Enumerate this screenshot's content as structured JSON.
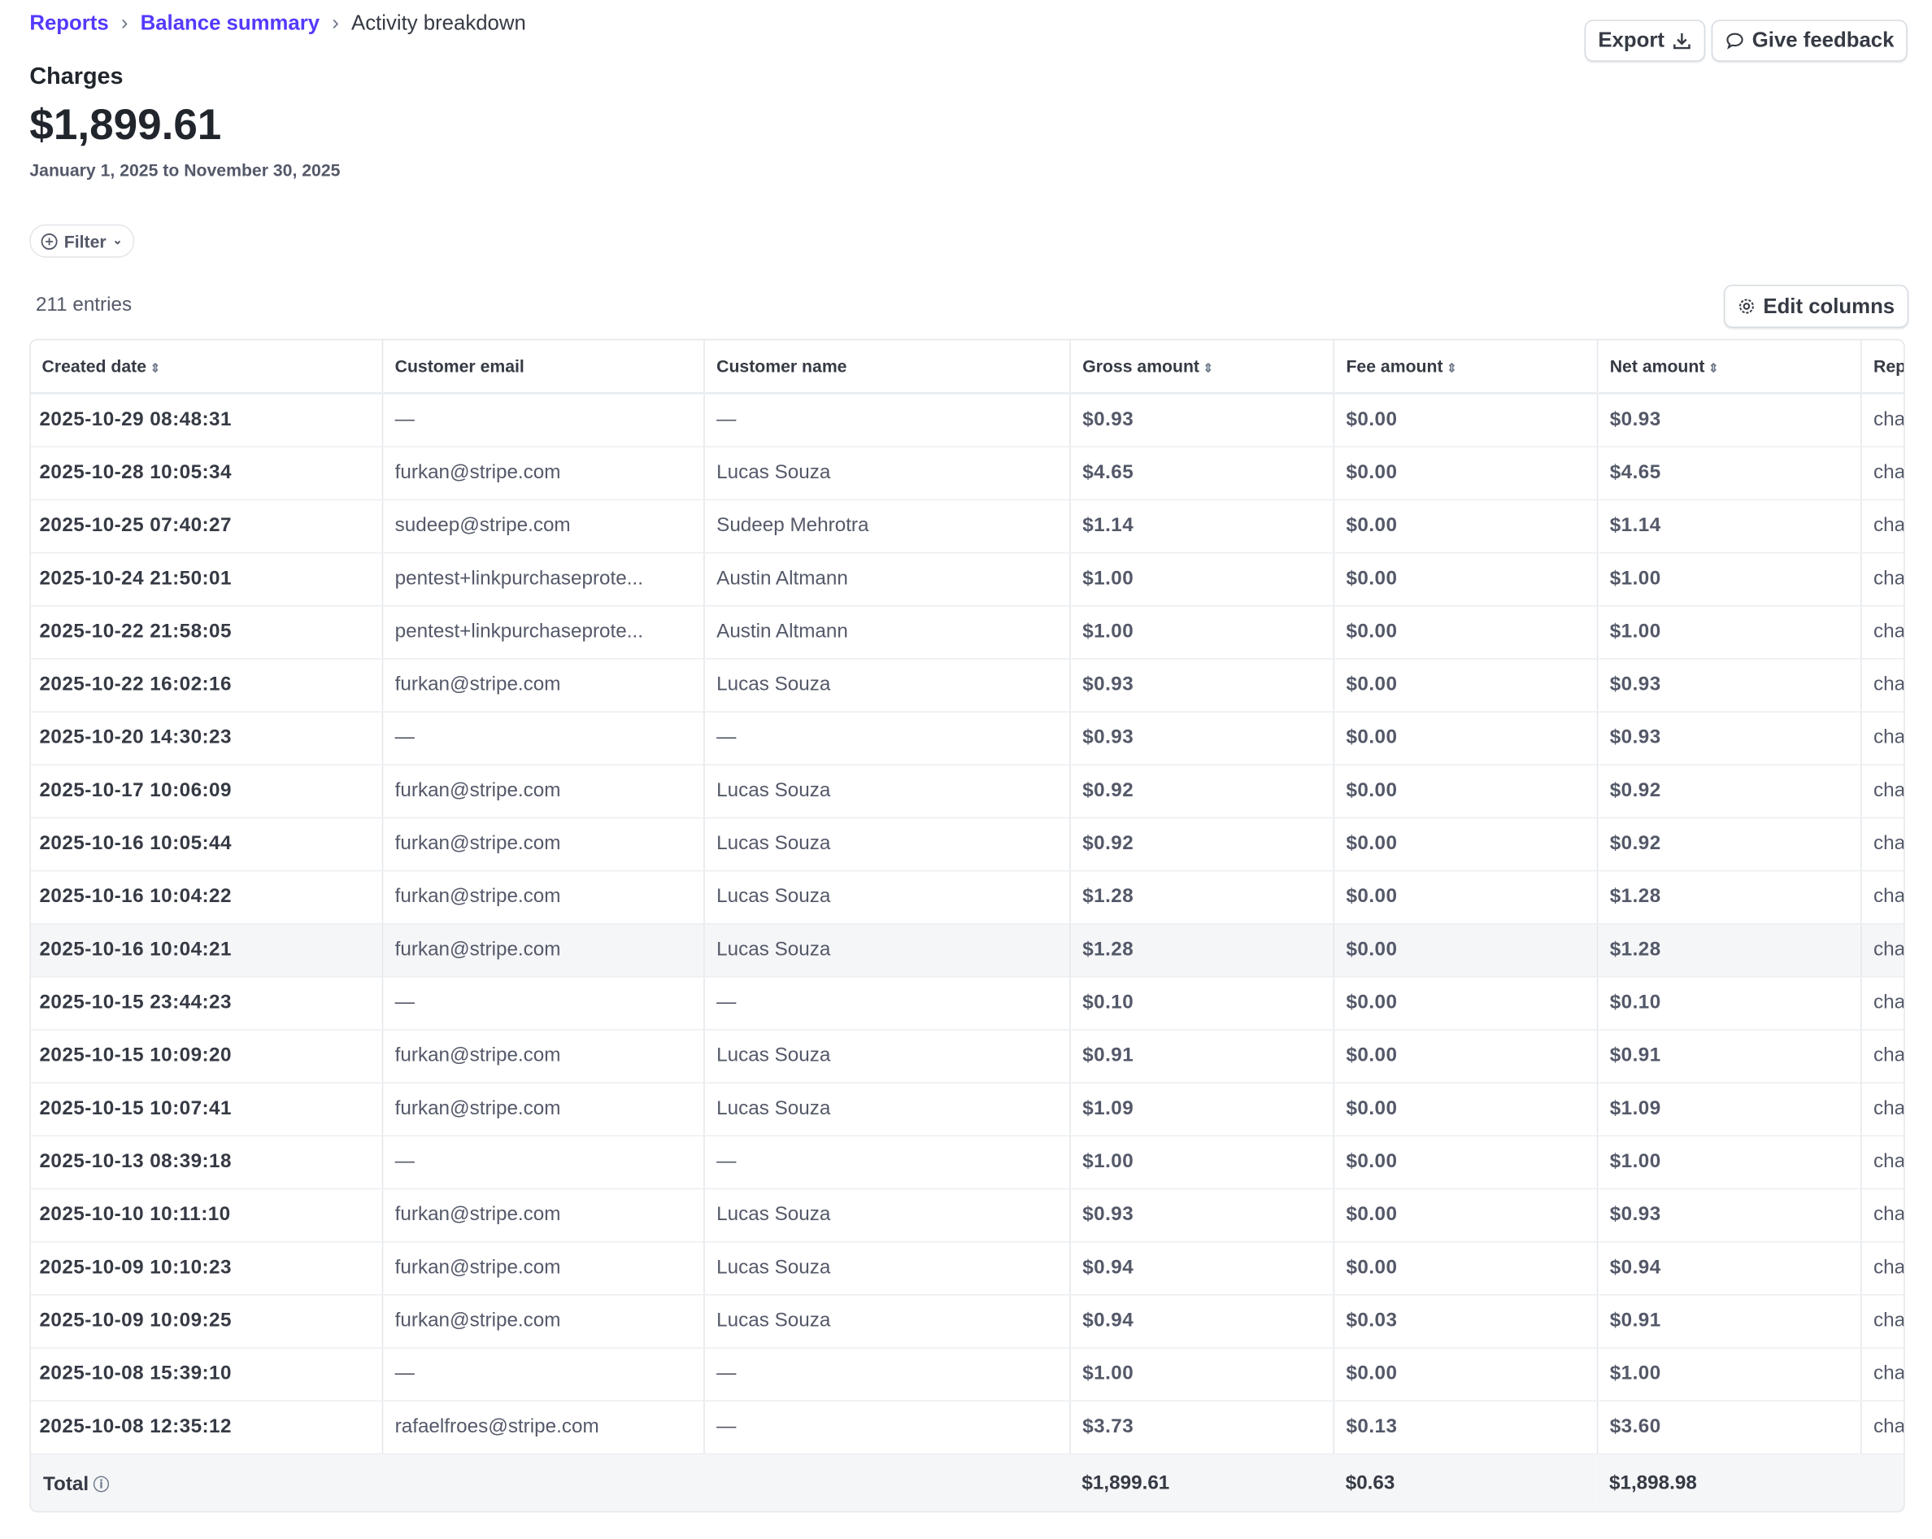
{
  "breadcrumb": [
    "Reports",
    "Balance summary",
    "Activity breakdown"
  ],
  "header": {
    "title": "Charges",
    "amount": "$1,899.61",
    "date_range": "January 1, 2025 to November 30, 2025"
  },
  "actions": {
    "export": "Export",
    "feedback": "Give feedback",
    "filter": "Filter",
    "edit_columns": "Edit columns"
  },
  "entries": "211 entries",
  "table": {
    "columns": [
      "Created date",
      "Customer email",
      "Customer name",
      "Gross amount",
      "Fee amount",
      "Net amount",
      "Rep"
    ],
    "rows": [
      [
        "2025-10-29 08:48:31",
        "—",
        "—",
        "$0.93",
        "$0.00",
        "$0.93",
        "cha"
      ],
      [
        "2025-10-28 10:05:34",
        "furkan@stripe.com",
        "Lucas Souza",
        "$4.65",
        "$0.00",
        "$4.65",
        "cha"
      ],
      [
        "2025-10-25 07:40:27",
        "sudeep@stripe.com",
        "Sudeep Mehrotra",
        "$1.14",
        "$0.00",
        "$1.14",
        "cha"
      ],
      [
        "2025-10-24 21:50:01",
        "pentest+linkpurchaseprote...",
        "Austin Altmann",
        "$1.00",
        "$0.00",
        "$1.00",
        "cha"
      ],
      [
        "2025-10-22 21:58:05",
        "pentest+linkpurchaseprote...",
        "Austin Altmann",
        "$1.00",
        "$0.00",
        "$1.00",
        "cha"
      ],
      [
        "2025-10-22 16:02:16",
        "furkan@stripe.com",
        "Lucas Souza",
        "$0.93",
        "$0.00",
        "$0.93",
        "cha"
      ],
      [
        "2025-10-20 14:30:23",
        "—",
        "—",
        "$0.93",
        "$0.00",
        "$0.93",
        "cha"
      ],
      [
        "2025-10-17 10:06:09",
        "furkan@stripe.com",
        "Lucas Souza",
        "$0.92",
        "$0.00",
        "$0.92",
        "cha"
      ],
      [
        "2025-10-16 10:05:44",
        "furkan@stripe.com",
        "Lucas Souza",
        "$0.92",
        "$0.00",
        "$0.92",
        "cha"
      ],
      [
        "2025-10-16 10:04:22",
        "furkan@stripe.com",
        "Lucas Souza",
        "$1.28",
        "$0.00",
        "$1.28",
        "cha"
      ],
      [
        "2025-10-16 10:04:21",
        "furkan@stripe.com",
        "Lucas Souza",
        "$1.28",
        "$0.00",
        "$1.28",
        "cha"
      ],
      [
        "2025-10-15 23:44:23",
        "—",
        "—",
        "$0.10",
        "$0.00",
        "$0.10",
        "cha"
      ],
      [
        "2025-10-15 10:09:20",
        "furkan@stripe.com",
        "Lucas Souza",
        "$0.91",
        "$0.00",
        "$0.91",
        "cha"
      ],
      [
        "2025-10-15 10:07:41",
        "furkan@stripe.com",
        "Lucas Souza",
        "$1.09",
        "$0.00",
        "$1.09",
        "cha"
      ],
      [
        "2025-10-13 08:39:18",
        "—",
        "—",
        "$1.00",
        "$0.00",
        "$1.00",
        "cha"
      ],
      [
        "2025-10-10 10:11:10",
        "furkan@stripe.com",
        "Lucas Souza",
        "$0.93",
        "$0.00",
        "$0.93",
        "cha"
      ],
      [
        "2025-10-09 10:10:23",
        "furkan@stripe.com",
        "Lucas Souza",
        "$0.94",
        "$0.00",
        "$0.94",
        "cha"
      ],
      [
        "2025-10-09 10:09:25",
        "furkan@stripe.com",
        "Lucas Souza",
        "$0.94",
        "$0.03",
        "$0.91",
        "cha"
      ],
      [
        "2025-10-08 15:39:10",
        "—",
        "—",
        "$1.00",
        "$0.00",
        "$1.00",
        "cha"
      ],
      [
        "2025-10-08 12:35:12",
        "rafaelfroes@stripe.com",
        "—",
        "$3.73",
        "$0.13",
        "$3.60",
        "cha"
      ]
    ],
    "total": {
      "label": "Total",
      "gross": "$1,899.61",
      "fee": "$0.63",
      "net": "$1,898.98"
    }
  }
}
